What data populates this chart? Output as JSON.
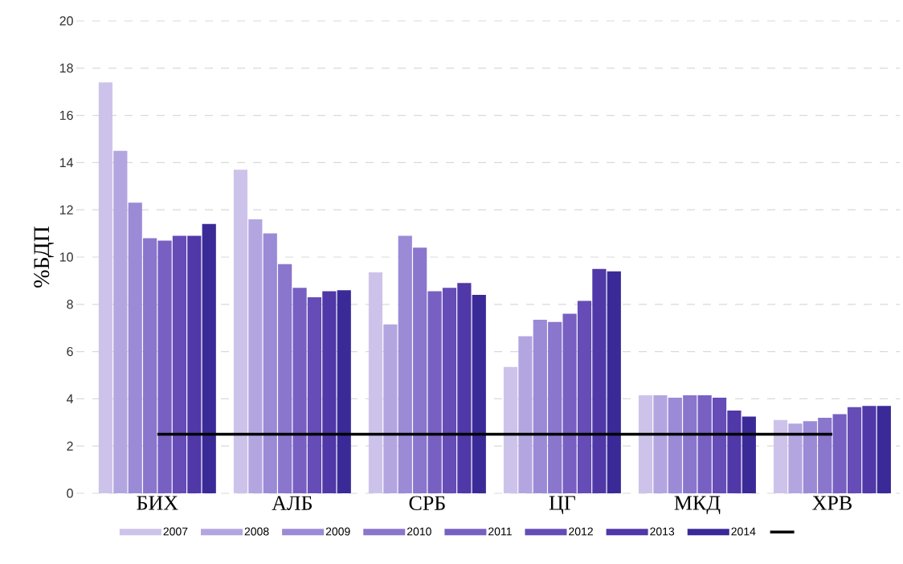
{
  "chart_data": {
    "type": "bar",
    "ylabel": "%БДП",
    "categories": [
      "БИХ",
      "АЛБ",
      "СРБ",
      "ЦГ",
      "МКД",
      "ХРВ"
    ],
    "series": [
      {
        "name": "2007",
        "color": "#cdc3ea",
        "values": [
          17.4,
          13.7,
          9.35,
          5.35,
          4.15,
          3.1
        ]
      },
      {
        "name": "2008",
        "color": "#b3a6e0",
        "values": [
          14.5,
          11.6,
          7.15,
          6.65,
          4.15,
          2.95
        ]
      },
      {
        "name": "2009",
        "color": "#9b8ad6",
        "values": [
          12.3,
          11.0,
          10.9,
          7.35,
          4.05,
          3.05
        ]
      },
      {
        "name": "2010",
        "color": "#8a76cc",
        "values": [
          10.8,
          9.7,
          10.4,
          7.25,
          4.15,
          3.2
        ]
      },
      {
        "name": "2011",
        "color": "#7760c2",
        "values": [
          10.7,
          8.7,
          8.55,
          7.6,
          4.15,
          3.35
        ]
      },
      {
        "name": "2012",
        "color": "#654cb6",
        "values": [
          10.9,
          8.3,
          8.7,
          8.15,
          4.05,
          3.65
        ]
      },
      {
        "name": "2013",
        "color": "#5038a8",
        "values": [
          10.9,
          8.55,
          8.9,
          9.5,
          3.5,
          3.7
        ]
      },
      {
        "name": "2014",
        "color": "#3a2a98",
        "values": [
          11.4,
          8.6,
          8.4,
          9.4,
          3.25,
          3.7
        ]
      }
    ],
    "ref_lines": [
      {
        "axis": "y",
        "value": 2.5,
        "color": "#000000"
      }
    ],
    "ylim": [
      0,
      20
    ],
    "yticks": [
      0,
      2,
      4,
      6,
      8,
      10,
      12,
      14,
      16,
      18,
      20
    ],
    "grid": "y",
    "legend": "bottom"
  }
}
